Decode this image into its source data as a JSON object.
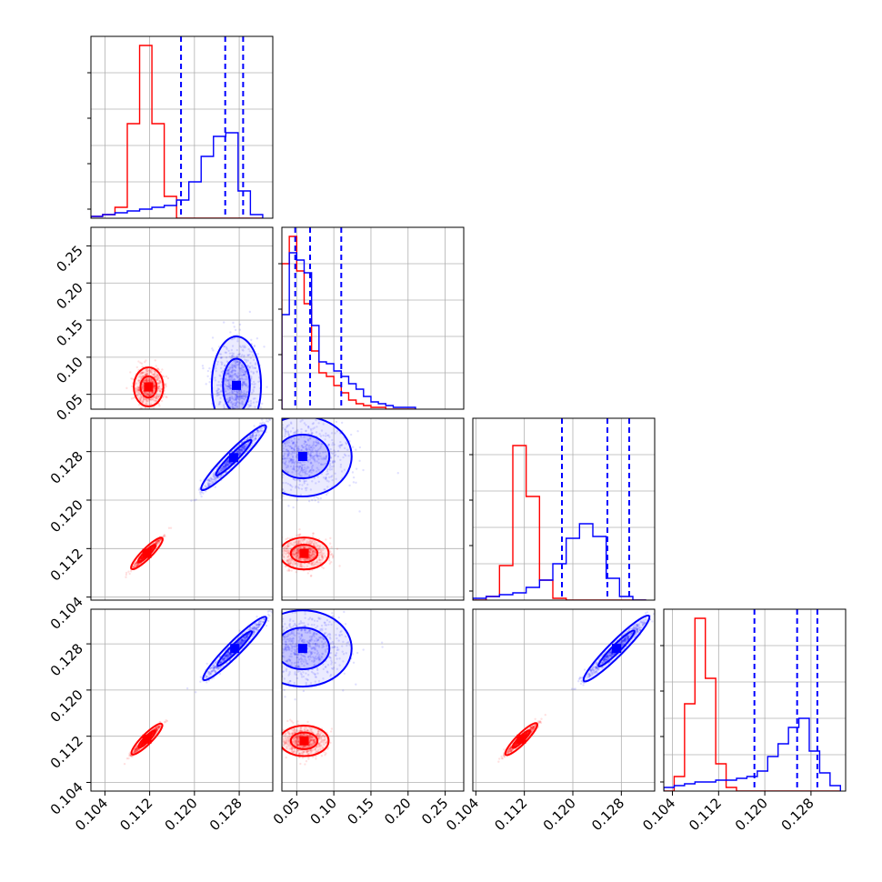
{
  "chart_data": {
    "type": "corner",
    "title": "",
    "grid": true,
    "legend": "",
    "colors": {
      "series_a": "#ff0000",
      "series_b": "#0000ff",
      "quantile_lines": "#0000ff"
    },
    "parameters": [
      "p1",
      "p2",
      "p3",
      "p4"
    ],
    "axes": {
      "p1": {
        "range": [
          0.1015,
          0.134
        ],
        "ticks": [
          0.104,
          0.112,
          0.12,
          0.128
        ],
        "tick_labels": [
          "0.104",
          "0.112",
          "0.120",
          "0.128"
        ]
      },
      "p2": {
        "range": [
          0.03,
          0.275
        ],
        "ticks": [
          0.05,
          0.1,
          0.15,
          0.2,
          0.25
        ],
        "tick_labels": [
          "0.05",
          "0.10",
          "0.15",
          "0.20",
          "0.25"
        ]
      },
      "p3": {
        "range": [
          0.1035,
          0.1335
        ],
        "ticks": [
          0.104,
          0.112,
          0.12,
          0.128
        ],
        "tick_labels": [
          "0.104",
          "0.112",
          "0.120",
          "0.128"
        ]
      },
      "p4": {
        "range": [
          0.1025,
          0.134
        ],
        "ticks": [
          0.104,
          0.112,
          0.12,
          0.128
        ],
        "tick_labels": [
          "0.104",
          "0.112",
          "0.120",
          "0.128"
        ]
      }
    },
    "quantiles": {
      "p1": [
        0.1176,
        0.1255,
        0.1287
      ],
      "p2": [
        0.048,
        0.068,
        0.11
      ],
      "p3": [
        0.1182,
        0.1257,
        0.1293
      ],
      "p4": [
        0.1182,
        0.1256,
        0.1291
      ]
    },
    "histograms": [
      {
        "param": "p1",
        "bins": [
          0.1015,
          0.1036,
          0.1058,
          0.108,
          0.1102,
          0.1124,
          0.1146,
          0.1168,
          0.119,
          0.1212,
          0.1234,
          0.1256,
          0.1278,
          0.13,
          0.1322
        ],
        "series": [
          {
            "color": "#ff0000",
            "values": [
              0.01,
              0.02,
              0.06,
              0.52,
              0.95,
              0.52,
              0.12,
              0,
              0,
              0,
              0,
              0,
              0,
              0
            ]
          },
          {
            "color": "#0000ff",
            "values": [
              0.01,
              0.02,
              0.03,
              0.04,
              0.05,
              0.06,
              0.07,
              0.1,
              0.2,
              0.34,
              0.45,
              0.47,
              0.15,
              0.02
            ]
          }
        ]
      },
      {
        "param": "p2",
        "bins": [
          0.03,
          0.04,
          0.05,
          0.06,
          0.07,
          0.08,
          0.09,
          0.1,
          0.11,
          0.12,
          0.13,
          0.14,
          0.15,
          0.16,
          0.17,
          0.18,
          0.19,
          0.2,
          0.21
        ],
        "series": [
          {
            "color": "#ff0000",
            "values": [
              0.8,
              0.95,
              0.76,
              0.58,
              0.32,
              0.2,
              0.18,
              0.13,
              0.09,
              0.05,
              0.03,
              0.02,
              0.01,
              0.01,
              0,
              0,
              0,
              0
            ]
          },
          {
            "color": "#0000ff",
            "values": [
              0.52,
              0.86,
              0.82,
              0.75,
              0.46,
              0.26,
              0.25,
              0.21,
              0.18,
              0.14,
              0.11,
              0.07,
              0.04,
              0.03,
              0.02,
              0.01,
              0.01,
              0.01
            ]
          }
        ]
      },
      {
        "param": "p3",
        "bins": [
          0.1035,
          0.1057,
          0.1079,
          0.1101,
          0.1123,
          0.1145,
          0.1167,
          0.1189,
          0.1211,
          0.1233,
          0.1255,
          0.1277,
          0.1299,
          0.1321
        ],
        "series": [
          {
            "color": "#ff0000",
            "values": [
              0,
              0.02,
              0.19,
              0.85,
              0.57,
              0.11,
              0.01,
              0,
              0,
              0,
              0,
              0,
              0
            ]
          },
          {
            "color": "#0000ff",
            "values": [
              0.01,
              0.02,
              0.03,
              0.04,
              0.07,
              0.11,
              0.2,
              0.34,
              0.42,
              0.35,
              0.12,
              0.02,
              0
            ]
          }
        ]
      },
      {
        "param": "p4",
        "bins": [
          0.1025,
          0.1043,
          0.1061,
          0.1079,
          0.1097,
          0.1115,
          0.1133,
          0.1151,
          0.1169,
          0.1187,
          0.1205,
          0.1223,
          0.1241,
          0.1259,
          0.1277,
          0.1295,
          0.1313,
          0.1331
        ],
        "series": [
          {
            "color": "#ff0000",
            "values": [
              0,
              0.08,
              0.48,
              0.95,
              0.62,
              0.15,
              0.02,
              0,
              0,
              0,
              0,
              0,
              0,
              0,
              0,
              0,
              0
            ]
          },
          {
            "color": "#0000ff",
            "values": [
              0.02,
              0.03,
              0.04,
              0.05,
              0.05,
              0.06,
              0.06,
              0.07,
              0.08,
              0.11,
              0.19,
              0.26,
              0.35,
              0.4,
              0.22,
              0.1,
              0.03
            ]
          }
        ]
      }
    ],
    "joint_distributions": [
      {
        "x": "p1",
        "y": "p2",
        "series": [
          {
            "color": "#ff0000",
            "center": [
              0.1118,
              0.06
            ],
            "spread": [
              0.0012,
              0.012
            ]
          },
          {
            "color": "#0000ff",
            "center": [
              0.1275,
              0.062
            ],
            "spread": [
              0.002,
              0.03
            ]
          }
        ]
      },
      {
        "x": "p1",
        "y": "p3",
        "series": [
          {
            "color": "#ff0000",
            "center": [
              0.1115,
              0.1112
            ],
            "spread": [
              0.0012,
              0.0012
            ]
          },
          {
            "color": "#0000ff",
            "center": [
              0.127,
              0.127
            ],
            "spread": [
              0.0025,
              0.0025
            ]
          }
        ]
      },
      {
        "x": "p1",
        "y": "p4",
        "series": [
          {
            "color": "#ff0000",
            "center": [
              0.1115,
              0.1115
            ],
            "spread": [
              0.0012,
              0.0012
            ]
          },
          {
            "color": "#0000ff",
            "center": [
              0.1272,
              0.1272
            ],
            "spread": [
              0.0025,
              0.0025
            ]
          }
        ]
      },
      {
        "x": "p2",
        "y": "p3",
        "series": [
          {
            "color": "#ff0000",
            "center": [
              0.06,
              0.1112
            ],
            "spread": [
              0.015,
              0.0012
            ]
          },
          {
            "color": "#0000ff",
            "center": [
              0.058,
              0.1272
            ],
            "spread": [
              0.03,
              0.003
            ]
          }
        ]
      },
      {
        "x": "p2",
        "y": "p4",
        "series": [
          {
            "color": "#ff0000",
            "center": [
              0.06,
              0.1112
            ],
            "spread": [
              0.015,
              0.0012
            ]
          },
          {
            "color": "#0000ff",
            "center": [
              0.058,
              0.1272
            ],
            "spread": [
              0.03,
              0.003
            ]
          }
        ]
      },
      {
        "x": "p3",
        "y": "p4",
        "series": [
          {
            "color": "#ff0000",
            "center": [
              0.1115,
              0.1115
            ],
            "spread": [
              0.0012,
              0.0012
            ]
          },
          {
            "color": "#0000ff",
            "center": [
              0.1272,
              0.1272
            ],
            "spread": [
              0.0025,
              0.0025
            ]
          }
        ]
      }
    ]
  }
}
